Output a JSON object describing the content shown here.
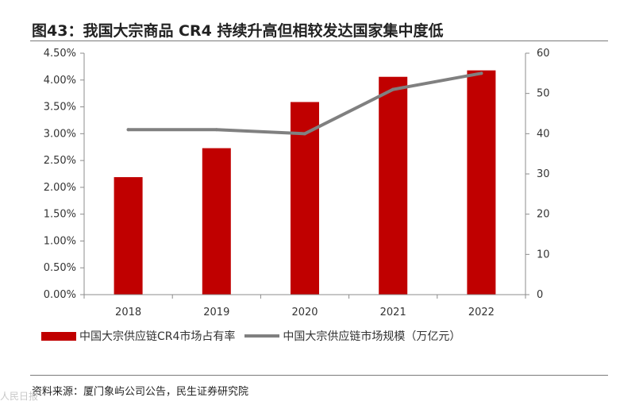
{
  "title": "图43：我国大宗商品 CR4 持续升高但相较发达国家集中度低",
  "source": "资料来源：厦门象屿公司公告，民生证券研究院",
  "watermark": "人民日报",
  "colors": {
    "bar": "#c00000",
    "line": "#808080"
  },
  "chart_data": {
    "type": "bar",
    "categories": [
      "2018",
      "2019",
      "2020",
      "2021",
      "2022"
    ],
    "series": [
      {
        "name": "中国大宗供应链CR4市场占有率",
        "type": "bar",
        "axis": "left",
        "values": [
          2.19,
          2.73,
          3.59,
          4.06,
          4.18
        ]
      },
      {
        "name": "中国大宗供应链市场规模（万亿元）",
        "type": "line",
        "axis": "right",
        "values": [
          41,
          41,
          40,
          51,
          55
        ]
      }
    ],
    "y_left": {
      "min": 0,
      "max": 4.5,
      "step": 0.5,
      "ticks": [
        "0.00%",
        "0.50%",
        "1.00%",
        "1.50%",
        "2.00%",
        "2.50%",
        "3.00%",
        "3.50%",
        "4.00%",
        "4.50%"
      ]
    },
    "y_right": {
      "min": 0,
      "max": 60,
      "step": 10,
      "ticks": [
        "0",
        "10",
        "20",
        "30",
        "40",
        "50",
        "60"
      ]
    },
    "grid": false,
    "legend_position": "bottom"
  }
}
